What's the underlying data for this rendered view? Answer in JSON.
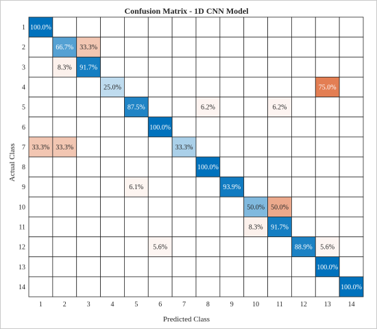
{
  "chart_data": {
    "type": "heatmap",
    "title": "Confusion Matrix - 1D CNN Model",
    "xlabel": "Predicted Class",
    "ylabel": "Actual Class",
    "classes": [
      "1",
      "2",
      "3",
      "4",
      "5",
      "6",
      "7",
      "8",
      "9",
      "10",
      "11",
      "12",
      "13",
      "14"
    ],
    "cells": [
      {
        "actual": "1",
        "predicted": "1",
        "value": 100.0,
        "label": "100.0%"
      },
      {
        "actual": "2",
        "predicted": "2",
        "value": 66.7,
        "label": "66.7%"
      },
      {
        "actual": "2",
        "predicted": "3",
        "value": 33.3,
        "label": "33.3%"
      },
      {
        "actual": "3",
        "predicted": "2",
        "value": 8.3,
        "label": "8.3%"
      },
      {
        "actual": "3",
        "predicted": "3",
        "value": 91.7,
        "label": "91.7%"
      },
      {
        "actual": "4",
        "predicted": "4",
        "value": 25.0,
        "label": "25.0%"
      },
      {
        "actual": "4",
        "predicted": "13",
        "value": 75.0,
        "label": "75.0%"
      },
      {
        "actual": "5",
        "predicted": "5",
        "value": 87.5,
        "label": "87.5%"
      },
      {
        "actual": "5",
        "predicted": "8",
        "value": 6.2,
        "label": "6.2%"
      },
      {
        "actual": "5",
        "predicted": "11",
        "value": 6.2,
        "label": "6.2%"
      },
      {
        "actual": "6",
        "predicted": "6",
        "value": 100.0,
        "label": "100.0%"
      },
      {
        "actual": "7",
        "predicted": "1",
        "value": 33.3,
        "label": "33.3%"
      },
      {
        "actual": "7",
        "predicted": "2",
        "value": 33.3,
        "label": "33.3%"
      },
      {
        "actual": "7",
        "predicted": "7",
        "value": 33.3,
        "label": "33.3%"
      },
      {
        "actual": "8",
        "predicted": "8",
        "value": 100.0,
        "label": "100.0%"
      },
      {
        "actual": "9",
        "predicted": "5",
        "value": 6.1,
        "label": "6.1%"
      },
      {
        "actual": "9",
        "predicted": "9",
        "value": 93.9,
        "label": "93.9%"
      },
      {
        "actual": "10",
        "predicted": "10",
        "value": 50.0,
        "label": "50.0%"
      },
      {
        "actual": "10",
        "predicted": "11",
        "value": 50.0,
        "label": "50.0%"
      },
      {
        "actual": "11",
        "predicted": "10",
        "value": 8.3,
        "label": "8.3%"
      },
      {
        "actual": "11",
        "predicted": "11",
        "value": 91.7,
        "label": "91.7%"
      },
      {
        "actual": "12",
        "predicted": "6",
        "value": 5.6,
        "label": "5.6%"
      },
      {
        "actual": "12",
        "predicted": "12",
        "value": 88.9,
        "label": "88.9%"
      },
      {
        "actual": "12",
        "predicted": "13",
        "value": 5.6,
        "label": "5.6%"
      },
      {
        "actual": "13",
        "predicted": "13",
        "value": 100.0,
        "label": "100.0%"
      },
      {
        "actual": "14",
        "predicted": "14",
        "value": 100.0,
        "label": "100.0%"
      }
    ],
    "colors": {
      "correct": "#0072BD",
      "incorrect": "#D95319",
      "grid": "#262626",
      "background": "#ffffff"
    }
  }
}
